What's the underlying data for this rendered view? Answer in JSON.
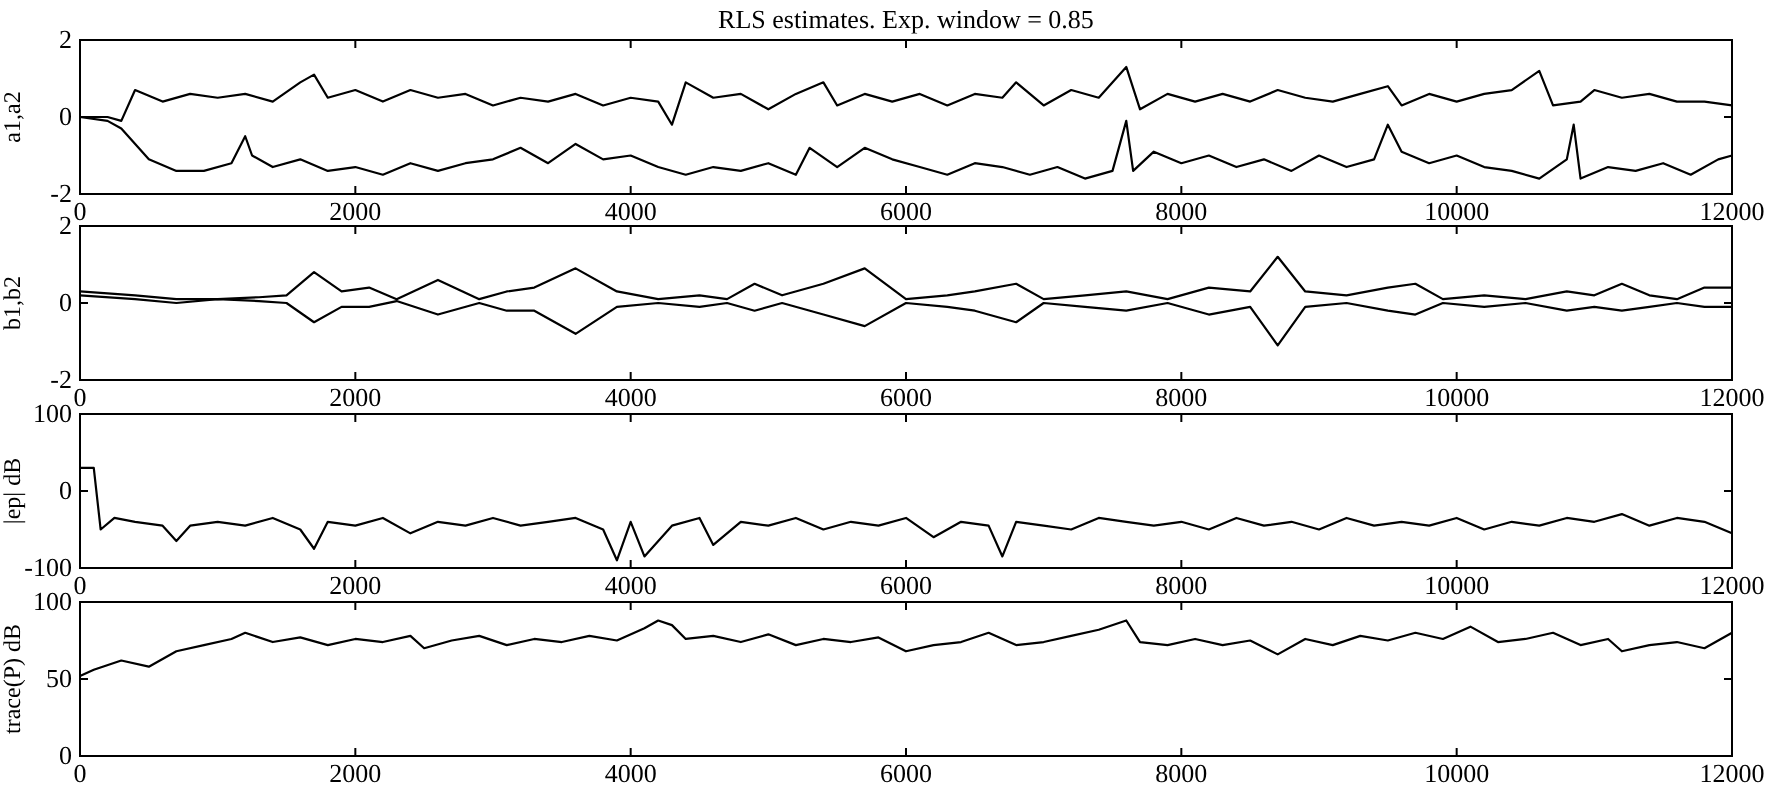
{
  "chart_data": [
    {
      "type": "line",
      "title": "RLS estimates. Exp. window = 0.85",
      "ylabel": "a1,a2",
      "xlim": [
        0,
        12000
      ],
      "xticks": [
        0,
        2000,
        4000,
        6000,
        8000,
        10000,
        12000
      ],
      "ylim": [
        -2,
        2
      ],
      "yticks": [
        -2,
        0,
        2
      ],
      "series": [
        {
          "color": "#000000",
          "x": [
            0,
            200,
            300,
            400,
            600,
            800,
            1000,
            1200,
            1400,
            1600,
            1700,
            1800,
            2000,
            2200,
            2400,
            2600,
            2800,
            3000,
            3200,
            3400,
            3600,
            3800,
            4000,
            4200,
            4300,
            4400,
            4600,
            4800,
            5000,
            5200,
            5400,
            5500,
            5700,
            5900,
            6100,
            6300,
            6500,
            6700,
            6800,
            7000,
            7200,
            7400,
            7600,
            7700,
            7900,
            8100,
            8300,
            8500,
            8700,
            8900,
            9100,
            9300,
            9500,
            9600,
            9800,
            10000,
            10200,
            10400,
            10600,
            10700,
            10900,
            11000,
            11200,
            11400,
            11600,
            11800,
            12000
          ],
          "values": [
            0,
            0,
            -0.1,
            0.7,
            0.4,
            0.6,
            0.5,
            0.6,
            0.4,
            0.9,
            1.1,
            0.5,
            0.7,
            0.4,
            0.7,
            0.5,
            0.6,
            0.3,
            0.5,
            0.4,
            0.6,
            0.3,
            0.5,
            0.4,
            -0.2,
            0.9,
            0.5,
            0.6,
            0.2,
            0.6,
            0.9,
            0.3,
            0.6,
            0.4,
            0.6,
            0.3,
            0.6,
            0.5,
            0.9,
            0.3,
            0.7,
            0.5,
            1.3,
            0.2,
            0.6,
            0.4,
            0.6,
            0.4,
            0.7,
            0.5,
            0.4,
            0.6,
            0.8,
            0.3,
            0.6,
            0.4,
            0.6,
            0.7,
            1.2,
            0.3,
            0.4,
            0.7,
            0.5,
            0.6,
            0.4,
            0.4,
            0.3
          ]
        },
        {
          "color": "#000000",
          "x": [
            0,
            200,
            300,
            500,
            700,
            900,
            1100,
            1200,
            1250,
            1400,
            1600,
            1800,
            2000,
            2200,
            2400,
            2600,
            2800,
            3000,
            3200,
            3400,
            3600,
            3800,
            4000,
            4200,
            4400,
            4600,
            4800,
            5000,
            5200,
            5300,
            5500,
            5700,
            5900,
            6100,
            6300,
            6500,
            6700,
            6900,
            7100,
            7300,
            7500,
            7600,
            7650,
            7800,
            8000,
            8200,
            8400,
            8600,
            8800,
            9000,
            9200,
            9400,
            9500,
            9600,
            9800,
            10000,
            10200,
            10400,
            10600,
            10800,
            10850,
            10900,
            11100,
            11300,
            11500,
            11700,
            11900,
            12000
          ],
          "values": [
            0,
            -0.1,
            -0.3,
            -1.1,
            -1.4,
            -1.4,
            -1.2,
            -0.5,
            -1.0,
            -1.3,
            -1.1,
            -1.4,
            -1.3,
            -1.5,
            -1.2,
            -1.4,
            -1.2,
            -1.1,
            -0.8,
            -1.2,
            -0.7,
            -1.1,
            -1.0,
            -1.3,
            -1.5,
            -1.3,
            -1.4,
            -1.2,
            -1.5,
            -0.8,
            -1.3,
            -0.8,
            -1.1,
            -1.3,
            -1.5,
            -1.2,
            -1.3,
            -1.5,
            -1.3,
            -1.6,
            -1.4,
            -0.1,
            -1.4,
            -0.9,
            -1.2,
            -1.0,
            -1.3,
            -1.1,
            -1.4,
            -1.0,
            -1.3,
            -1.1,
            -0.2,
            -0.9,
            -1.2,
            -1.0,
            -1.3,
            -1.4,
            -1.6,
            -1.1,
            -0.2,
            -1.6,
            -1.3,
            -1.4,
            -1.2,
            -1.5,
            -1.1,
            -1.0
          ]
        }
      ]
    },
    {
      "type": "line",
      "ylabel": "b1,b2",
      "xlim": [
        0,
        12000
      ],
      "xticks": [
        0,
        2000,
        4000,
        6000,
        8000,
        10000,
        12000
      ],
      "ylim": [
        -2,
        2
      ],
      "yticks": [
        -2,
        0,
        2
      ],
      "series": [
        {
          "color": "#000000",
          "x": [
            0,
            400,
            700,
            1000,
            1300,
            1500,
            1700,
            1900,
            2100,
            2300,
            2600,
            2900,
            3100,
            3300,
            3600,
            3900,
            4200,
            4500,
            4700,
            4900,
            5100,
            5400,
            5700,
            6000,
            6300,
            6500,
            6800,
            7000,
            7300,
            7600,
            7900,
            8200,
            8500,
            8700,
            8900,
            9200,
            9500,
            9700,
            9900,
            10200,
            10500,
            10800,
            11000,
            11200,
            11400,
            11600,
            11800,
            12000
          ],
          "values": [
            0.3,
            0.2,
            0.1,
            0.1,
            0.15,
            0.2,
            0.8,
            0.3,
            0.4,
            0.1,
            0.6,
            0.1,
            0.3,
            0.4,
            0.9,
            0.3,
            0.1,
            0.2,
            0.1,
            0.5,
            0.2,
            0.5,
            0.9,
            0.1,
            0.2,
            0.3,
            0.5,
            0.1,
            0.2,
            0.3,
            0.1,
            0.4,
            0.3,
            1.2,
            0.3,
            0.2,
            0.4,
            0.5,
            0.1,
            0.2,
            0.1,
            0.3,
            0.2,
            0.5,
            0.2,
            0.1,
            0.4,
            0.4
          ]
        },
        {
          "color": "#000000",
          "x": [
            0,
            400,
            700,
            1000,
            1300,
            1500,
            1700,
            1900,
            2100,
            2300,
            2600,
            2900,
            3100,
            3300,
            3600,
            3900,
            4200,
            4500,
            4700,
            4900,
            5100,
            5400,
            5700,
            6000,
            6300,
            6500,
            6800,
            7000,
            7300,
            7600,
            7900,
            8200,
            8500,
            8700,
            8900,
            9200,
            9500,
            9700,
            9900,
            10200,
            10500,
            10800,
            11000,
            11200,
            11400,
            11600,
            11800,
            12000
          ],
          "values": [
            0.2,
            0.1,
            0,
            0.1,
            0.05,
            0,
            -0.5,
            -0.1,
            -0.1,
            0.05,
            -0.3,
            0,
            -0.2,
            -0.2,
            -0.8,
            -0.1,
            0,
            -0.1,
            0,
            -0.2,
            0,
            -0.3,
            -0.6,
            0,
            -0.1,
            -0.2,
            -0.5,
            0,
            -0.1,
            -0.2,
            0,
            -0.3,
            -0.1,
            -1.1,
            -0.1,
            0,
            -0.2,
            -0.3,
            0,
            -0.1,
            0,
            -0.2,
            -0.1,
            -0.2,
            -0.1,
            0,
            -0.1,
            -0.1
          ]
        }
      ]
    },
    {
      "type": "line",
      "ylabel": "|ep| dB",
      "xlim": [
        0,
        12000
      ],
      "xticks": [
        0,
        2000,
        4000,
        6000,
        8000,
        10000,
        12000
      ],
      "ylim": [
        -100,
        100
      ],
      "yticks": [
        -100,
        0,
        100
      ],
      "series": [
        {
          "color": "#000000",
          "x": [
            0,
            100,
            150,
            250,
            400,
            600,
            700,
            800,
            1000,
            1200,
            1400,
            1600,
            1700,
            1800,
            2000,
            2200,
            2400,
            2600,
            2800,
            3000,
            3200,
            3400,
            3600,
            3800,
            3900,
            4000,
            4100,
            4300,
            4500,
            4600,
            4800,
            5000,
            5200,
            5400,
            5600,
            5800,
            6000,
            6200,
            6400,
            6600,
            6700,
            6800,
            7000,
            7200,
            7400,
            7600,
            7800,
            8000,
            8200,
            8400,
            8600,
            8800,
            9000,
            9200,
            9400,
            9600,
            9800,
            10000,
            10200,
            10400,
            10600,
            10800,
            11000,
            11200,
            11400,
            11600,
            11800,
            12000
          ],
          "values": [
            30,
            30,
            -50,
            -35,
            -40,
            -45,
            -65,
            -45,
            -40,
            -45,
            -35,
            -50,
            -75,
            -40,
            -45,
            -35,
            -55,
            -40,
            -45,
            -35,
            -45,
            -40,
            -35,
            -50,
            -90,
            -40,
            -85,
            -45,
            -35,
            -70,
            -40,
            -45,
            -35,
            -50,
            -40,
            -45,
            -35,
            -60,
            -40,
            -45,
            -85,
            -40,
            -45,
            -50,
            -35,
            -40,
            -45,
            -40,
            -50,
            -35,
            -45,
            -40,
            -50,
            -35,
            -45,
            -40,
            -45,
            -35,
            -50,
            -40,
            -45,
            -35,
            -40,
            -30,
            -45,
            -35,
            -40,
            -55
          ]
        }
      ]
    },
    {
      "type": "line",
      "ylabel": "trace(P) dB",
      "xlim": [
        0,
        12000
      ],
      "xticks": [
        0,
        2000,
        4000,
        6000,
        8000,
        10000,
        12000
      ],
      "ylim": [
        0,
        100
      ],
      "yticks": [
        0,
        50,
        100
      ],
      "series": [
        {
          "color": "#000000",
          "x": [
            0,
            100,
            300,
            500,
            700,
            900,
            1100,
            1200,
            1400,
            1600,
            1800,
            2000,
            2200,
            2400,
            2500,
            2700,
            2900,
            3100,
            3300,
            3500,
            3700,
            3900,
            4100,
            4200,
            4300,
            4400,
            4600,
            4800,
            5000,
            5200,
            5400,
            5600,
            5800,
            6000,
            6200,
            6400,
            6600,
            6800,
            7000,
            7200,
            7400,
            7600,
            7700,
            7900,
            8100,
            8300,
            8500,
            8700,
            8900,
            9100,
            9300,
            9500,
            9700,
            9900,
            10100,
            10300,
            10500,
            10700,
            10900,
            11100,
            11200,
            11400,
            11600,
            11800,
            12000
          ],
          "values": [
            52,
            56,
            62,
            58,
            68,
            72,
            76,
            80,
            74,
            77,
            72,
            76,
            74,
            78,
            70,
            75,
            78,
            72,
            76,
            74,
            78,
            75,
            83,
            88,
            85,
            76,
            78,
            74,
            79,
            72,
            76,
            74,
            77,
            68,
            72,
            74,
            80,
            72,
            74,
            78,
            82,
            88,
            74,
            72,
            76,
            72,
            75,
            66,
            76,
            72,
            78,
            75,
            80,
            76,
            84,
            74,
            76,
            80,
            72,
            76,
            68,
            72,
            74,
            70,
            80
          ]
        }
      ]
    }
  ]
}
